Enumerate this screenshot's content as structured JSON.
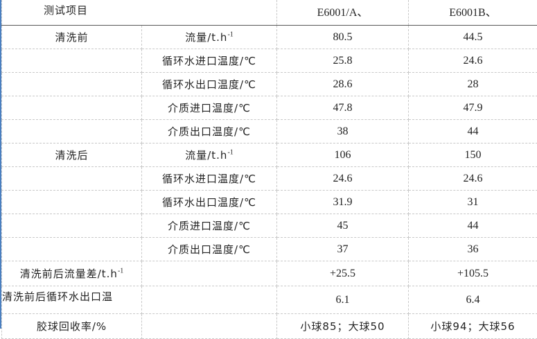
{
  "header": {
    "item": "测试项目",
    "col_a": "E6001/A、",
    "col_b": "E6001B、"
  },
  "rows": [
    {
      "group": "清洗前",
      "param": "流量/t.h",
      "sup": "-1",
      "a": "80.5",
      "b": "44.5"
    },
    {
      "group": "",
      "param": "循环水进口温度/℃",
      "a": "25.8",
      "b": "24.6"
    },
    {
      "group": "",
      "param": "循环水出口温度/℃",
      "a": "28.6",
      "b": "28"
    },
    {
      "group": "",
      "param": "介质进口温度/℃",
      "a": "47.8",
      "b": "47.9"
    },
    {
      "group": "",
      "param": "介质出口温度/℃",
      "a": "38",
      "b": "44"
    },
    {
      "group": "清洗后",
      "param": "流量/t.h",
      "sup": "-1",
      "a": "106",
      "b": "150"
    },
    {
      "group": "",
      "param": "循环水进口温度/℃",
      "a": "24.6",
      "b": "24.6"
    },
    {
      "group": "",
      "param": "循环水出口温度/℃",
      "a": "31.9",
      "b": "31"
    },
    {
      "group": "",
      "param": "介质进口温度/℃",
      "a": "45",
      "b": "44"
    },
    {
      "group": "",
      "param": "介质出口温度/℃",
      "a": "37",
      "b": "36"
    }
  ],
  "summary": [
    {
      "label": "清洗前后流量差/t.h",
      "sup": "-1",
      "a": "+25.5",
      "b": "+105.5"
    },
    {
      "label": "清洗前后循环水出口温",
      "a": "6.1",
      "b": "6.4"
    },
    {
      "label": "胶球回收率/%",
      "a": "小球85；大球50",
      "b": "小球94；大球56"
    }
  ]
}
